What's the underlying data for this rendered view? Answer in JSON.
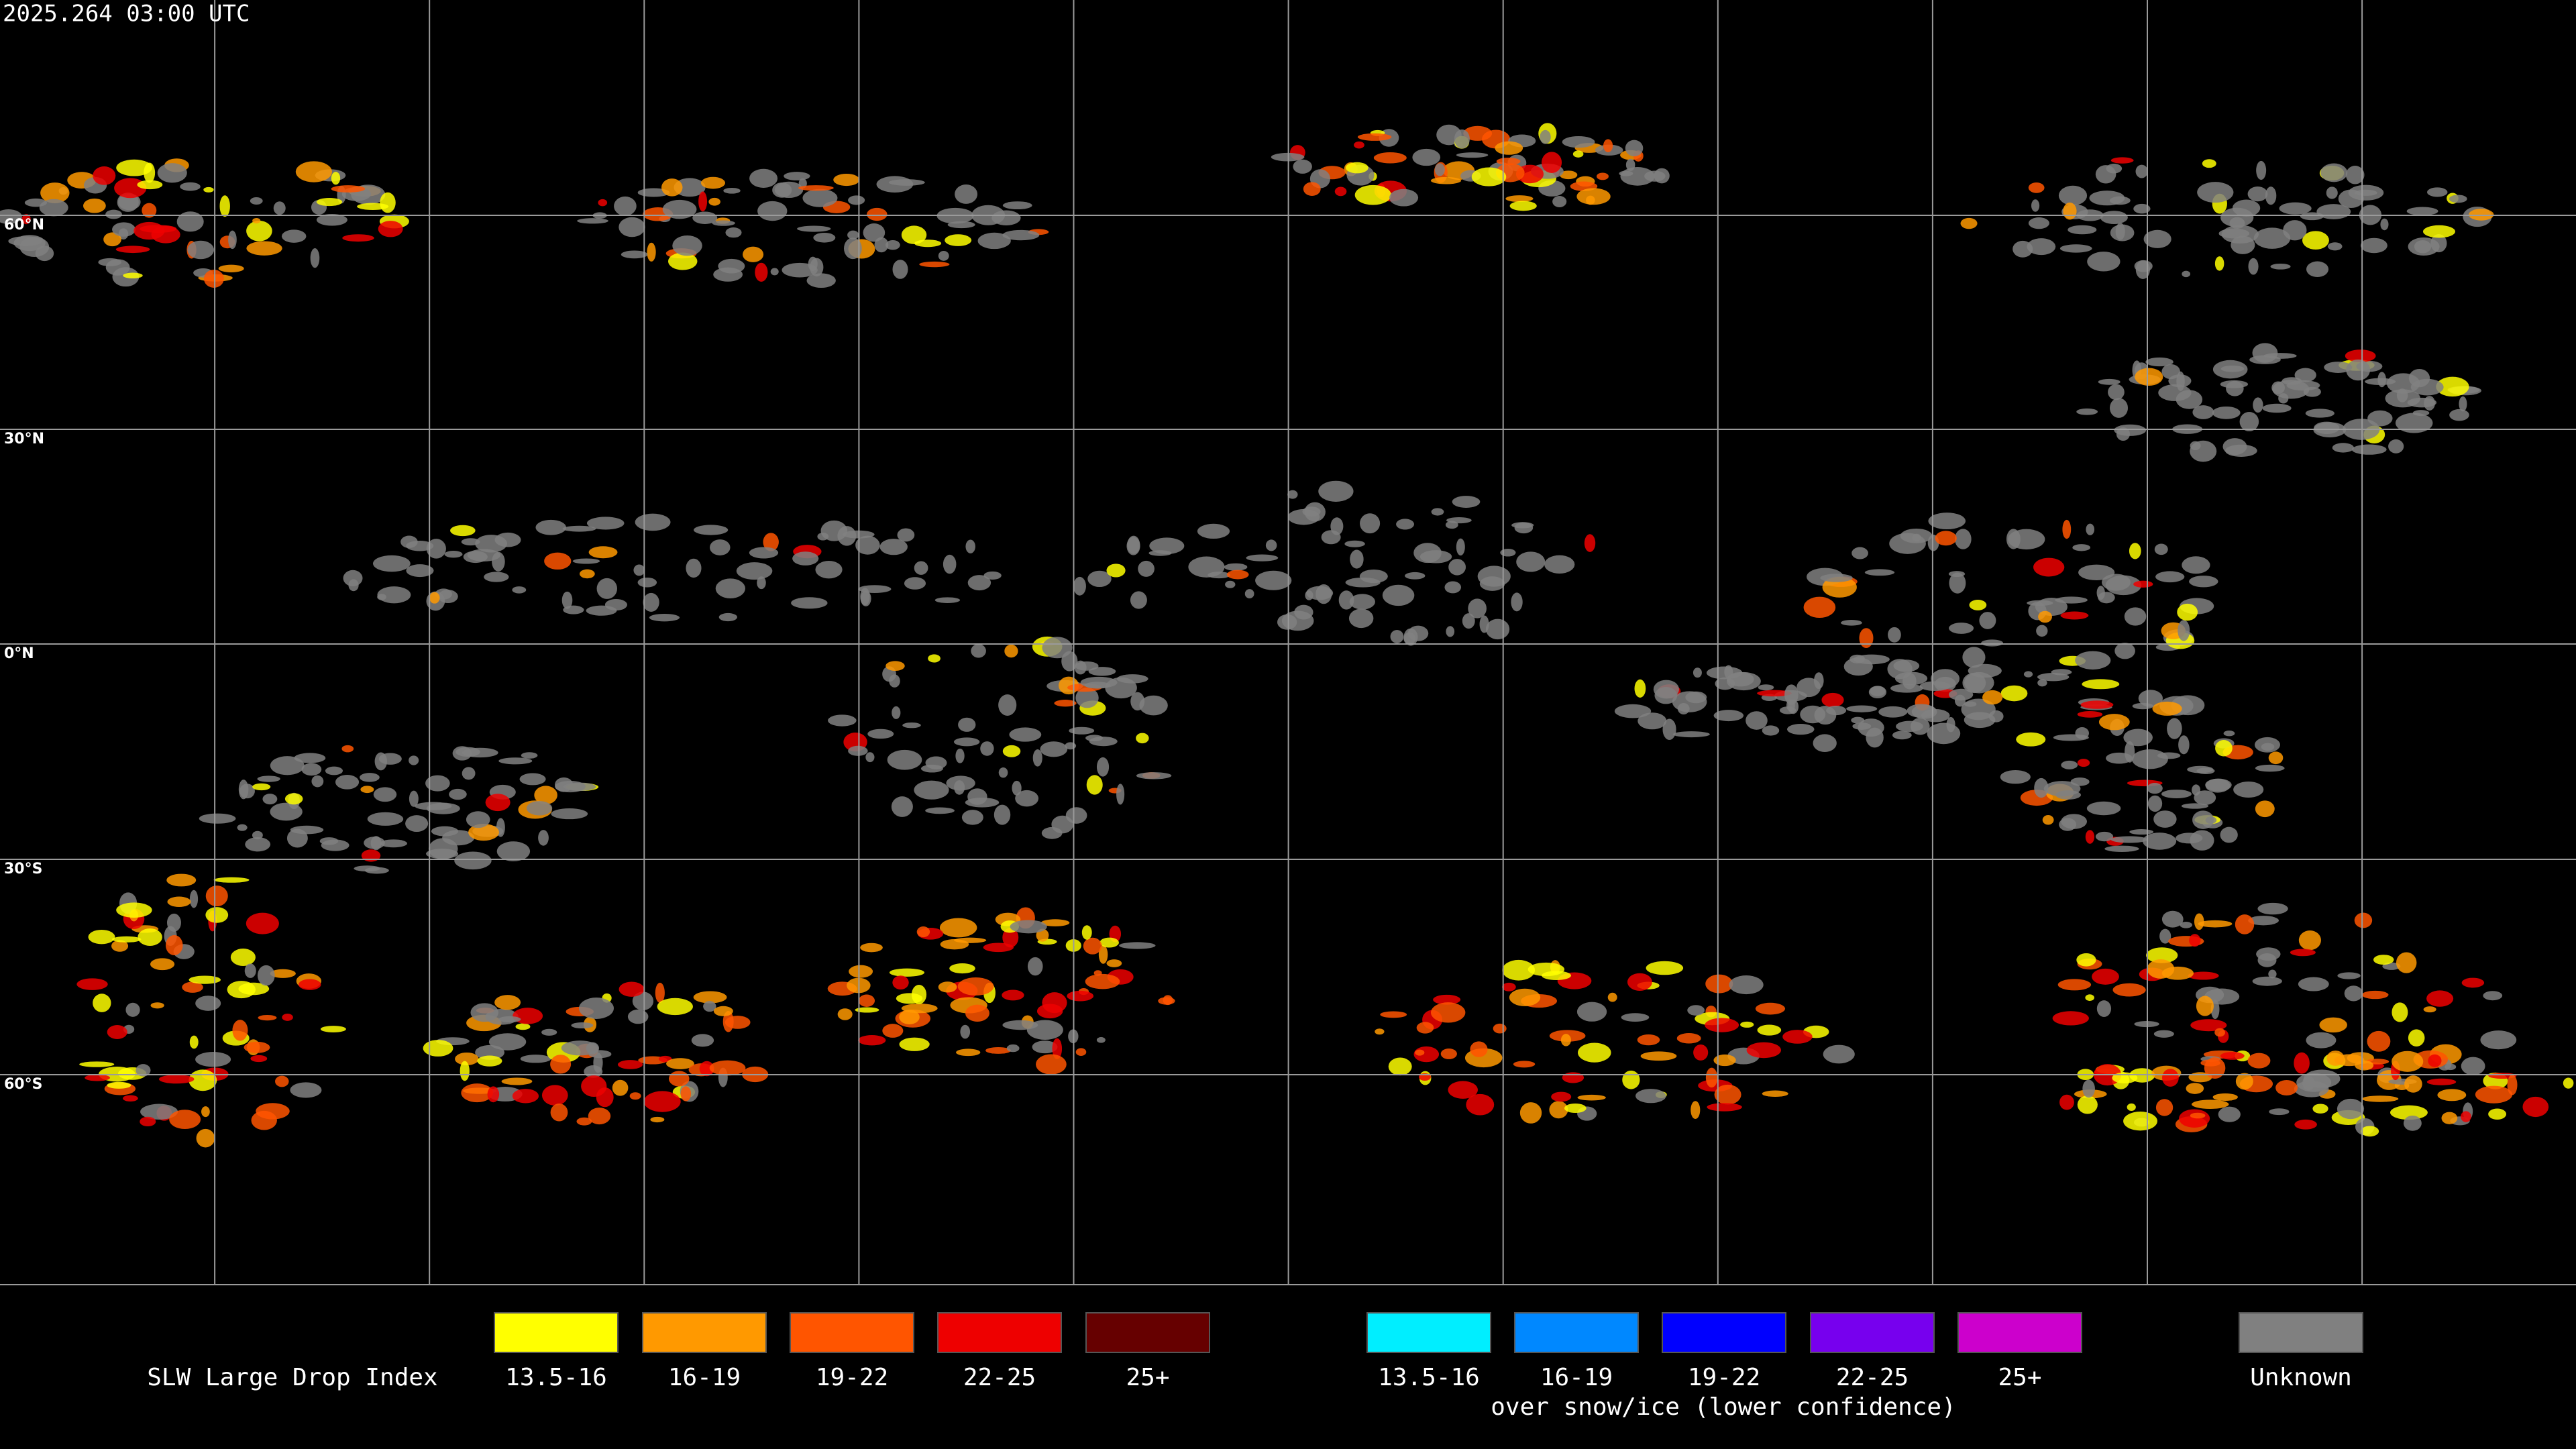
{
  "header": {
    "timestamp": "2025.264 03:00 UTC"
  },
  "map": {
    "latitude_labels": [
      "60°N",
      "30°N",
      "0°N",
      "30°S",
      "60°S"
    ]
  },
  "legend": {
    "title": "SLW Large Drop Index",
    "groups": [
      {
        "items": [
          {
            "label": "13.5-16",
            "color": "#ffff00"
          },
          {
            "label": "16-19",
            "color": "#ff9900"
          },
          {
            "label": "19-22",
            "color": "#ff5500"
          },
          {
            "label": "22-25",
            "color": "#ee0000"
          },
          {
            "label": "25+",
            "color": "#660000"
          }
        ]
      },
      {
        "items": [
          {
            "label": "13.5-16",
            "color": "#00eeff"
          },
          {
            "label": "16-19",
            "color": "#0088ff"
          },
          {
            "label": "19-22",
            "color": "#0000ff"
          },
          {
            "label": "22-25",
            "color": "#7700ee"
          },
          {
            "label": "25+",
            "color": "#cc00cc"
          }
        ],
        "caption": "over snow/ice (lower confidence)"
      }
    ],
    "unknown": {
      "label": "Unknown",
      "color": "#808080"
    }
  }
}
